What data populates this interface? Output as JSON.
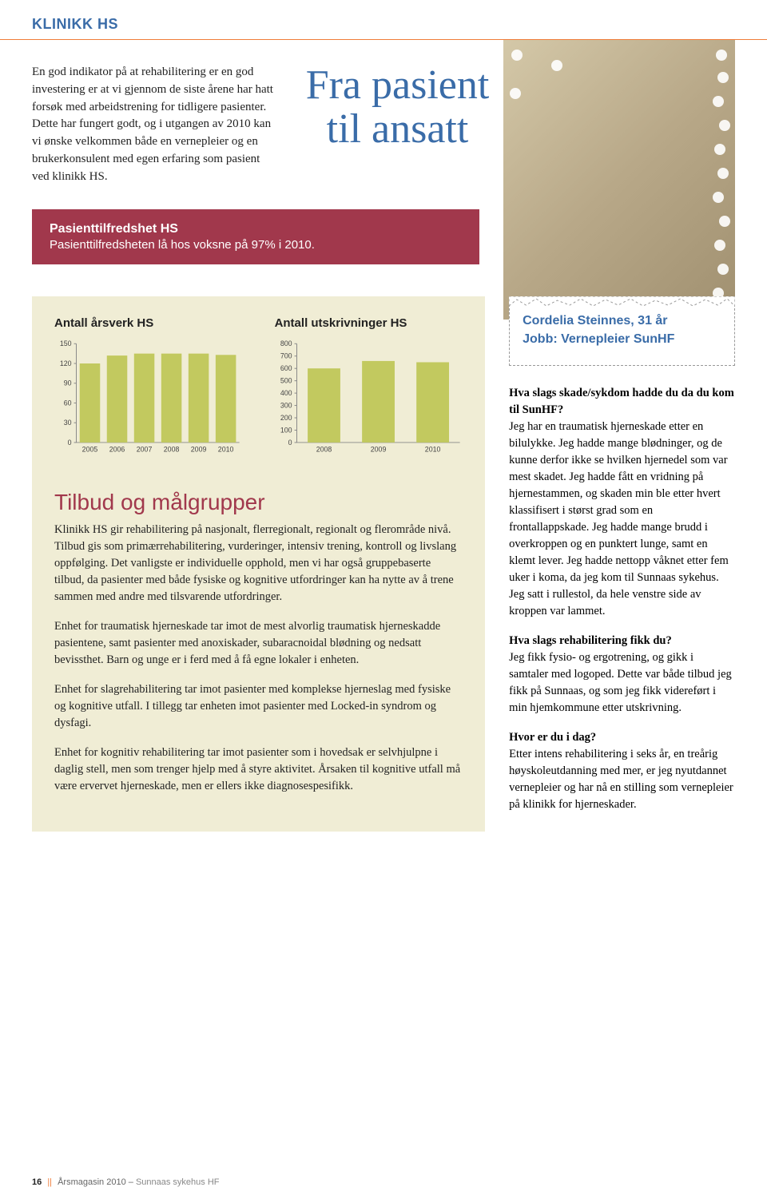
{
  "header": {
    "title": "KLINIKK HS"
  },
  "intro": "En god indikator på at rehabilitering er en god investering er at vi gjennom de siste årene har hatt forsøk med arbeidstrening for tidligere pasienter. Dette har fungert godt, og i utgangen av 2010 kan vi ønske velkommen både en vernepleier og en brukerkonsulent med egen erfaring som pasient ved klinikk HS.",
  "script_title_line1": "Fra pasient",
  "script_title_line2": "til ansatt",
  "satisfaction": {
    "heading": "Pasienttilfredshet HS",
    "body": "Pasienttilfredsheten lå hos voksne på 97% i 2010."
  },
  "chart1": {
    "title": "Antall årsverk HS",
    "type": "bar",
    "categories": [
      "2005",
      "2006",
      "2007",
      "2008",
      "2009",
      "2010"
    ],
    "values": [
      120,
      132,
      135,
      135,
      135,
      133
    ],
    "ylim": [
      0,
      150
    ],
    "yticks": [
      0,
      30,
      60,
      90,
      120,
      150
    ],
    "bar_color": "#c2c95f",
    "axis_color": "#888888",
    "tick_fontsize": 9,
    "bar_width": 0.75,
    "background": "#f0edd5"
  },
  "chart2": {
    "title": "Antall utskrivninger HS",
    "type": "bar",
    "categories": [
      "2008",
      "2009",
      "2010"
    ],
    "values": [
      600,
      660,
      650
    ],
    "ylim": [
      0,
      800
    ],
    "yticks": [
      0,
      100,
      200,
      300,
      400,
      500,
      600,
      700,
      800
    ],
    "bar_color": "#c2c95f",
    "axis_color": "#888888",
    "tick_fontsize": 9,
    "bar_width": 0.6,
    "background": "#f0edd5"
  },
  "tilbud": {
    "title": "Tilbud og målgrupper",
    "p1": "Klinikk HS gir rehabilitering på nasjonalt, flerregionalt, regionalt og flerområde nivå. Tilbud gis som primærrehabilitering, vurderinger, intensiv trening, kontroll og livslang oppfølging. Det vanligste er individuelle opphold, men vi har også gruppebaserte tilbud, da pasienter med både fysiske og kognitive utfordringer kan ha nytte av å trene sammen med andre med tilsvarende utfordringer.",
    "p2": "Enhet for traumatisk hjerneskade tar imot de mest alvorlig traumatisk hjerneskadde pasientene, samt pasienter med anoxiskader, subaracnoidal blødning og nedsatt bevissthet. Barn og unge er i ferd med å få egne lokaler i enheten.",
    "p3": "Enhet for slagrehabilitering tar imot pasienter med komplekse hjerneslag med fysiske og kognitive utfall. I tillegg tar enheten imot pasienter med Locked-in syndrom og dysfagi.",
    "p4": "Enhet for kognitiv rehabilitering tar imot pasienter som i hovedsak er selvhjulpne i daglig stell, men som trenger hjelp med å styre aktivitet. Årsaken til kognitive utfall må være ervervet hjerneskade, men er ellers ikke diagnosespesifikk."
  },
  "profile": {
    "name": "Cordelia Steinnes, 31 år",
    "job": "Jobb: Vernepleier SunHF"
  },
  "qa": {
    "q1": "Hva slags skade/sykdom hadde du da du kom til SunHF?",
    "a1": "Jeg har en traumatisk hjerneskade etter en bilulykke. Jeg hadde mange blødninger, og de kunne derfor ikke se hvilken hjernedel som var mest skadet. Jeg hadde fått en vridning på hjernestammen, og skaden min ble etter hvert klassifisert i størst grad som en frontallappskade. Jeg hadde mange brudd i overkroppen og en punktert lunge, samt en klemt lever. Jeg hadde nettopp våknet etter fem uker i koma, da jeg kom til Sunnaas sykehus. Jeg satt i rullestol, da hele venstre side av kroppen var lammet.",
    "q2": "Hva slags rehabilitering fikk du?",
    "a2": "Jeg fikk fysio- og ergotrening, og gikk i samtaler med logoped. Dette var både tilbud jeg fikk på Sunnaas, og som jeg fikk videreført i min hjemkommune etter utskrivning.",
    "q3": "Hvor er du i dag?",
    "a3": "Etter intens rehabilitering i seks år, en treårig høyskoleutdanning med mer, er jeg nyutdannet vernepleier og har nå en stilling som vernepleier på klinikk for hjerneskader."
  },
  "footer": {
    "page": "16",
    "sep": "||",
    "mag": "Årsmagasin 2010 –",
    "org": "Sunnaas sykehus HF"
  },
  "colors": {
    "blue": "#3a6ca8",
    "orange_rule": "#f07d3a",
    "maroon": "#a1384c",
    "olive_bar": "#c2c95f",
    "cream_bg": "#f0edd5"
  }
}
